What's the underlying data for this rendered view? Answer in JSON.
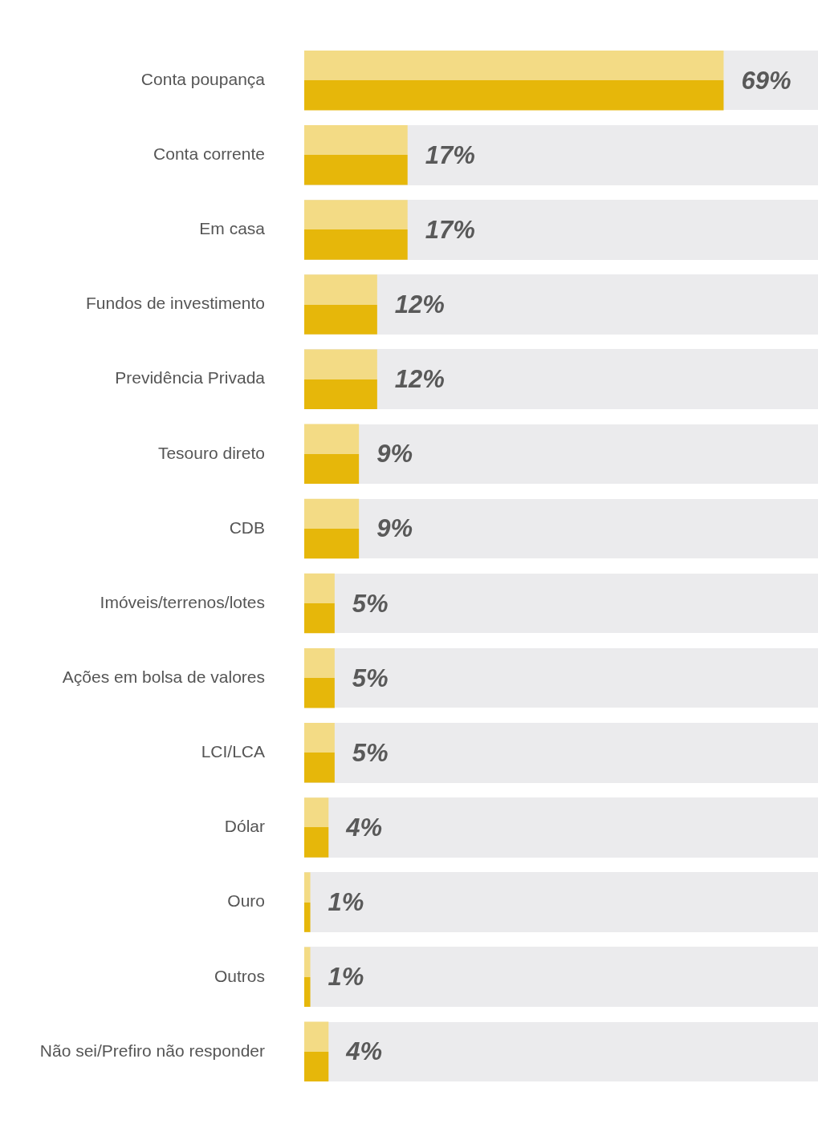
{
  "chart_data": {
    "type": "bar",
    "orientation": "horizontal",
    "categories": [
      "Conta poupança",
      "Conta corrente",
      "Em casa",
      "Fundos de investimento",
      "Previdência Privada",
      "Tesouro direto",
      "CDB",
      "Imóveis/terrenos/lotes",
      "Ações em bolsa de valores",
      "LCI/LCA",
      "Dólar",
      "Ouro",
      "Outros",
      "Não sei/Prefiro não responder"
    ],
    "values": [
      69,
      17,
      17,
      12,
      12,
      9,
      9,
      5,
      5,
      5,
      4,
      1,
      1,
      4
    ],
    "value_labels": [
      "69%",
      "17%",
      "17%",
      "12%",
      "12%",
      "9%",
      "9%",
      "5%",
      "5%",
      "5%",
      "4%",
      "1%",
      "1%",
      "4%"
    ],
    "color": "#e6b70a",
    "grid": false,
    "legend": false
  }
}
